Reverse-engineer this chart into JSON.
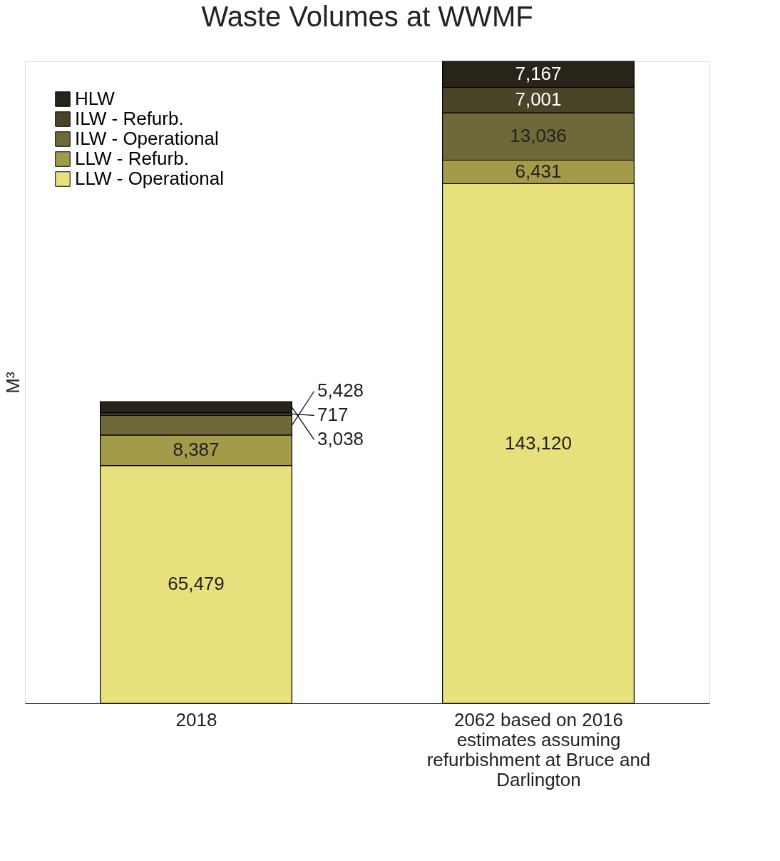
{
  "chart_data": {
    "type": "bar",
    "title": "Waste Volumes at WWMF",
    "ylabel": "M³",
    "categories": [
      "2018",
      "2062 based on 2016 estimates assuming refurbishment at Bruce and Darlington"
    ],
    "stacked": true,
    "legend": "top left",
    "grid": false,
    "series": [
      {
        "name": "LLW - Operational",
        "color": "#e8e07c",
        "values": [
          65479,
          143120
        ],
        "value_labels": [
          "65,479",
          "143,120"
        ]
      },
      {
        "name": "LLW - Refurb.",
        "color": "#a39a4a",
        "values": [
          8387,
          6431
        ],
        "value_labels": [
          "8,387",
          "6,431"
        ]
      },
      {
        "name": "ILW - Operational",
        "color": "#6f6838",
        "values": [
          5428,
          13036
        ],
        "value_labels": [
          "5,428",
          "13,036"
        ]
      },
      {
        "name": "ILW - Refurb.",
        "color": "#4a4428",
        "values": [
          717,
          7001
        ],
        "value_labels": [
          "717",
          "7,001"
        ]
      },
      {
        "name": "HLW",
        "color": "#29241a",
        "values": [
          3038,
          7167
        ],
        "value_labels": [
          "3,038",
          "7,167"
        ]
      }
    ]
  }
}
